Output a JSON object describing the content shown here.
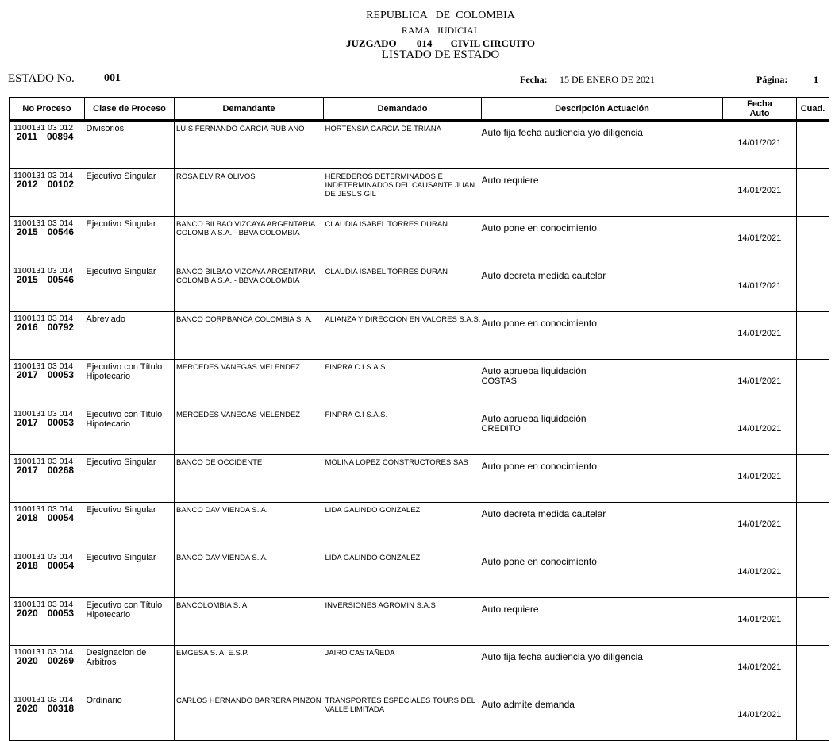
{
  "header": {
    "line1": "REPUBLICA   DE  COLOMBIA",
    "line2": "RAMA   JUDICIAL",
    "juzgado": "JUZGADO",
    "numero": "014",
    "tipo": "CIVIL CIRCUITO",
    "listado": "LISTADO DE ESTADO"
  },
  "meta": {
    "estado_label": "ESTADO No.",
    "estado_value": "001",
    "fecha_label": "Fecha:",
    "fecha_value": "15 DE ENERO DE 2021",
    "pagina_label": "Página:",
    "pagina_value": "1"
  },
  "columns": [
    "No  Proceso",
    "Clase de Proceso",
    "Demandante",
    "Demandado",
    "Descripción Actuación",
    "Fecha Auto",
    "Cuad."
  ],
  "rows": [
    {
      "radicado": "1100131 03 012",
      "anio": "2011",
      "num": "00894",
      "clase": "Divisorios",
      "demandante": "LUIS FERNANDO GARCIA RUBIANO",
      "demandado": "HORTENSIA GARCIA DE TRIANA",
      "actuacion": "Auto fija fecha audiencia y/o diligencia",
      "detalle": "",
      "fecha": "14/01/2021",
      "cuad": ""
    },
    {
      "radicado": "1100131 03 014",
      "anio": "2012",
      "num": "00102",
      "clase": "Ejecutivo Singular",
      "demandante": "ROSA ELVIRA OLIVOS",
      "demandado": "HEREDEROS DETERMINADOS E INDETERMINADOS  DEL CAUSANTE JUAN DE JESUS GIL",
      "actuacion": "Auto requiere",
      "detalle": "",
      "fecha": "14/01/2021",
      "cuad": ""
    },
    {
      "radicado": "1100131 03 014",
      "anio": "2015",
      "num": "00546",
      "clase": "Ejecutivo Singular",
      "demandante": "BANCO BILBAO VIZCAYA ARGENTARIA COLOMBIA S.A. - BBVA COLOMBIA",
      "demandado": "CLAUDIA ISABEL TORRES DURAN",
      "actuacion": "Auto pone en conocimiento",
      "detalle": "",
      "fecha": "14/01/2021",
      "cuad": ""
    },
    {
      "radicado": "1100131 03 014",
      "anio": "2015",
      "num": "00546",
      "clase": "Ejecutivo Singular",
      "demandante": "BANCO BILBAO VIZCAYA ARGENTARIA COLOMBIA S.A. - BBVA COLOMBIA",
      "demandado": "CLAUDIA ISABEL TORRES DURAN",
      "actuacion": "Auto decreta medida cautelar",
      "detalle": "",
      "fecha": "14/01/2021",
      "cuad": ""
    },
    {
      "radicado": "1100131 03 014",
      "anio": "2016",
      "num": "00792",
      "clase": "Abreviado",
      "demandante": "BANCO CORPBANCA COLOMBIA S. A.",
      "demandado": "ALIANZA Y DIRECCION EN VALORES S.A.S.",
      "actuacion": "Auto pone en conocimiento",
      "detalle": "",
      "fecha": "14/01/2021",
      "cuad": ""
    },
    {
      "radicado": "1100131 03 014",
      "anio": "2017",
      "num": "00053",
      "clase": "Ejecutivo con Título Hipotecario",
      "demandante": "MERCEDES VANEGAS MELENDEZ",
      "demandado": "FINPRA C.I S.A.S.",
      "actuacion": "Auto aprueba liquidación",
      "detalle": "COSTAS",
      "fecha": "14/01/2021",
      "cuad": ""
    },
    {
      "radicado": "1100131 03 014",
      "anio": "2017",
      "num": "00053",
      "clase": "Ejecutivo con Título Hipotecario",
      "demandante": "MERCEDES VANEGAS MELENDEZ",
      "demandado": "FINPRA C.I S.A.S.",
      "actuacion": "Auto aprueba liquidación",
      "detalle": "CREDITO",
      "fecha": "14/01/2021",
      "cuad": ""
    },
    {
      "radicado": "1100131 03 014",
      "anio": "2017",
      "num": "00268",
      "clase": "Ejecutivo Singular",
      "demandante": "BANCO DE OCCIDENTE",
      "demandado": "MOLINA LOPEZ CONSTRUCTORES SAS",
      "actuacion": "Auto pone en conocimiento",
      "detalle": "",
      "fecha": "14/01/2021",
      "cuad": ""
    },
    {
      "radicado": "1100131 03 014",
      "anio": "2018",
      "num": "00054",
      "clase": "Ejecutivo Singular",
      "demandante": "BANCO DAVIVIENDA S. A.",
      "demandado": "LIDA GALINDO GONZALEZ",
      "actuacion": "Auto decreta medida cautelar",
      "detalle": "",
      "fecha": "14/01/2021",
      "cuad": ""
    },
    {
      "radicado": "1100131 03 014",
      "anio": "2018",
      "num": "00054",
      "clase": "Ejecutivo Singular",
      "demandante": "BANCO DAVIVIENDA S. A.",
      "demandado": "LIDA GALINDO GONZALEZ",
      "actuacion": "Auto pone en conocimiento",
      "detalle": "",
      "fecha": "14/01/2021",
      "cuad": ""
    },
    {
      "radicado": "1100131 03 014",
      "anio": "2020",
      "num": "00053",
      "clase": "Ejecutivo con Título Hipotecario",
      "demandante": "BANCOLOMBIA S. A.",
      "demandado": "INVERSIONES AGROMIN S.A.S",
      "actuacion": "Auto requiere",
      "detalle": "",
      "fecha": "14/01/2021",
      "cuad": ""
    },
    {
      "radicado": "1100131 03 014",
      "anio": "2020",
      "num": "00269",
      "clase": "Designacion de Arbitros",
      "demandante": "EMGESA S. A. E.S.P.",
      "demandado": "JAIRO CASTAÑEDA",
      "actuacion": "Auto fija fecha audiencia y/o diligencia",
      "detalle": "",
      "fecha": "14/01/2021",
      "cuad": ""
    },
    {
      "radicado": "1100131 03 014",
      "anio": "2020",
      "num": "00318",
      "clase": "Ordinario",
      "demandante": "CARLOS HERNANDO BARRERA PINZON",
      "demandado": "TRANSPORTES ESPECIALES TOURS DEL VALLE  LIMITADA",
      "actuacion": "Auto admite demanda",
      "detalle": "",
      "fecha": "14/01/2021",
      "cuad": ""
    }
  ]
}
